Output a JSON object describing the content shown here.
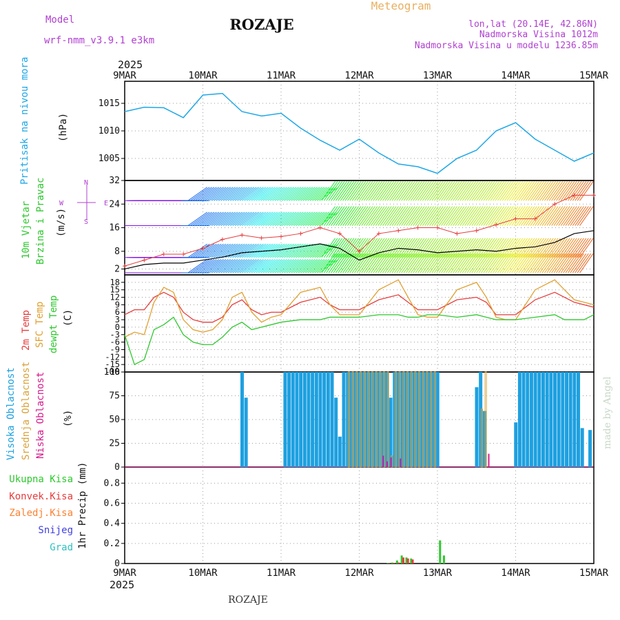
{
  "header": {
    "model_label": "Model",
    "model_name": "wrf-nmm_v3.9.1 e3km",
    "station": "ROZAJE",
    "product": "Meteogram",
    "coords": "lon,lat (20.14E, 42.86N)",
    "elevation": "Nadmorska Visina 1012m",
    "model_elevation": "Nadmorska Visina u modelu 1236.85m",
    "year": "2025"
  },
  "footer": {
    "station": "ROZAJE",
    "watermark": "made by Angel"
  },
  "colors": {
    "pressure": "#1ea7e6",
    "temp2m": "#e63c3c",
    "sfc": "#e0a030",
    "dew": "#2ec82e",
    "high": "#1ea0e0",
    "mid": "#d9a23a",
    "low": "#d81b8c",
    "total": "#2ec82e",
    "conv": "#e63c3c",
    "frozen": "#ff8030",
    "snow": "#4040e0",
    "hail": "#30c0c0",
    "wind": "#000000",
    "gust": "#e63c3c",
    "compass": "#b040d0"
  },
  "chart_data": [
    {
      "id": "pressure",
      "type": "line",
      "title": "Pritisak na nivou mora",
      "ylabel": "(hPa)",
      "xlabels": [
        "9MAR",
        "10MAR",
        "11MAR",
        "12MAR",
        "13MAR",
        "14MAR",
        "15MAR"
      ],
      "yticks": [
        1005,
        1010,
        1015
      ],
      "ylim": [
        1001,
        1019
      ],
      "x": [
        0,
        0.25,
        0.5,
        0.75,
        1.0,
        1.25,
        1.5,
        1.75,
        2.0,
        2.25,
        2.5,
        2.75,
        3.0,
        3.25,
        3.5,
        3.75,
        4.0,
        4.25,
        4.5,
        4.75,
        5.0,
        5.25,
        5.5,
        5.75,
        6.0
      ],
      "values": [
        1013.5,
        1014.3,
        1014.2,
        1012.4,
        1016.5,
        1016.8,
        1013.5,
        1012.7,
        1013.2,
        1010.5,
        1008.3,
        1006.5,
        1008.5,
        1006.0,
        1004.0,
        1003.5,
        1002.3,
        1005.0,
        1006.5,
        1010.0,
        1011.5,
        1008.5,
        1006.5,
        1004.5,
        1006.0
      ]
    },
    {
      "id": "wind",
      "type": "line",
      "title": "10m Vjetar Brzina i Pravac",
      "ylabel": "(m/s)",
      "compass": {
        "n": "N",
        "s": "S",
        "e": "E",
        "w": "W"
      },
      "yticks": [
        2,
        8,
        16,
        24,
        32
      ],
      "ylim": [
        0,
        32
      ],
      "x": [
        0,
        0.25,
        0.5,
        0.75,
        1.0,
        1.25,
        1.5,
        1.75,
        2.0,
        2.25,
        2.5,
        2.75,
        3.0,
        3.25,
        3.5,
        3.75,
        4.0,
        4.25,
        4.5,
        4.75,
        5.0,
        5.25,
        5.5,
        5.75,
        6.0
      ],
      "series": [
        {
          "name": "speed",
          "values": [
            2,
            3.5,
            4,
            4,
            5,
            6,
            7.5,
            8,
            8.5,
            9.5,
            10.5,
            9,
            5,
            7.5,
            9,
            8.5,
            7.5,
            8,
            8.5,
            8,
            9,
            9.5,
            11,
            14,
            15
          ]
        },
        {
          "name": "gust",
          "values": [
            3,
            5,
            7,
            7,
            9,
            12,
            13.5,
            12.5,
            13,
            14,
            16,
            14,
            8,
            14,
            15,
            16,
            16,
            14,
            15,
            17,
            19,
            19,
            24,
            27,
            27
          ]
        }
      ]
    },
    {
      "id": "temperature",
      "type": "line",
      "title": "2m Temp / SFC Temp / dewpt Temp",
      "ylabel": "(C)",
      "legend": [
        "2m Temp",
        "SFC Temp",
        "dewpt Temp"
      ],
      "yticks": [
        -18,
        -15,
        -12,
        -9,
        -6,
        -3,
        0,
        3,
        6,
        9,
        12,
        15,
        18
      ],
      "ylim": [
        -18,
        21
      ],
      "x": [
        0,
        0.125,
        0.25,
        0.375,
        0.5,
        0.625,
        0.75,
        0.875,
        1.0,
        1.125,
        1.25,
        1.375,
        1.5,
        1.625,
        1.75,
        1.875,
        2.0,
        2.25,
        2.5,
        2.625,
        2.75,
        2.875,
        3.0,
        3.25,
        3.5,
        3.625,
        3.75,
        3.875,
        4.0,
        4.25,
        4.5,
        4.625,
        4.75,
        4.875,
        5.0,
        5.25,
        5.5,
        5.625,
        5.75,
        5.875,
        6.0
      ],
      "series": [
        {
          "name": "2m Temp",
          "values": [
            5,
            7,
            7,
            12,
            14,
            12,
            6,
            3,
            2,
            2,
            4,
            9,
            11,
            7,
            5,
            6,
            6,
            10,
            12,
            9,
            7,
            7,
            7,
            11,
            13,
            10,
            7,
            7,
            7,
            11,
            12,
            10,
            5,
            5,
            5,
            11,
            14,
            12,
            10,
            9,
            8
          ]
        },
        {
          "name": "SFC Temp",
          "values": [
            -4,
            -2,
            -3,
            10,
            16,
            14,
            3,
            -1,
            -2,
            -1,
            3,
            12,
            14,
            6,
            2,
            4,
            5,
            14,
            16,
            9,
            5,
            5,
            5,
            15,
            19,
            12,
            5,
            4,
            4,
            15,
            18,
            12,
            4,
            3,
            3,
            15,
            19,
            15,
            11,
            10,
            9
          ]
        },
        {
          "name": "dewpt Temp",
          "values": [
            -3,
            -15,
            -13,
            -1,
            1,
            4,
            -3,
            -6,
            -7,
            -7,
            -4,
            0,
            2,
            -1,
            0,
            1,
            2,
            3,
            3,
            4,
            4,
            4,
            4,
            5,
            5,
            4,
            4,
            5,
            5,
            4,
            5,
            4,
            3,
            3,
            3,
            4,
            5,
            3,
            3,
            3,
            5
          ]
        }
      ]
    },
    {
      "id": "clouds",
      "type": "bar",
      "title": "Visoka / Srednja / Niska Oblacnost",
      "ylabel": "(%)",
      "legend": [
        "Visoka Oblacnost",
        "Srednja Oblacnost",
        "Niska Oblacnost"
      ],
      "yticks": [
        0,
        25,
        50,
        75,
        100
      ],
      "ylim": [
        0,
        100
      ],
      "series": [
        {
          "name": "Visoka Oblacnost",
          "x": [
            1.48,
            1.53,
            2.03,
            2.08,
            2.13,
            2.18,
            2.23,
            2.28,
            2.33,
            2.38,
            2.43,
            2.48,
            2.53,
            2.58,
            2.63,
            2.68,
            2.73,
            2.78,
            2.83,
            2.88,
            2.93,
            2.98,
            3.03,
            3.08,
            3.13,
            3.18,
            3.23,
            3.28,
            3.33,
            3.38,
            3.43,
            3.48,
            3.53,
            3.58,
            3.63,
            3.68,
            3.73,
            3.78,
            3.83,
            3.88,
            3.93,
            3.98,
            4.48,
            4.53,
            4.58,
            4.98,
            5.03,
            5.08,
            5.13,
            5.18,
            5.23,
            5.28,
            5.33,
            5.38,
            5.43,
            5.48,
            5.53,
            5.58,
            5.63,
            5.68,
            5.73,
            5.78,
            5.83,
            5.88,
            5.93
          ],
          "values": [
            100,
            73,
            100,
            100,
            100,
            100,
            100,
            100,
            100,
            100,
            100,
            100,
            100,
            100,
            100,
            73,
            32,
            100,
            100,
            100,
            100,
            100,
            100,
            100,
            100,
            100,
            100,
            100,
            100,
            73,
            100,
            100,
            100,
            100,
            100,
            100,
            100,
            100,
            100,
            100,
            100,
            100,
            84,
            100,
            59,
            47,
            100,
            100,
            100,
            100,
            100,
            100,
            100,
            100,
            100,
            100,
            100,
            100,
            100,
            100,
            100,
            100,
            41,
            0,
            39
          ]
        },
        {
          "name": "Srednja Oblacnost",
          "x": [
            2.85,
            2.9,
            2.95,
            3.0,
            3.05,
            3.1,
            3.15,
            3.2,
            3.25,
            3.3,
            3.35,
            3.4,
            3.45,
            3.5,
            3.55,
            3.6,
            3.65,
            3.7,
            3.75,
            3.8,
            3.85,
            3.9,
            3.95,
            4.55,
            4.6
          ],
          "values": [
            100,
            100,
            100,
            100,
            100,
            100,
            100,
            100,
            100,
            100,
            100,
            12,
            100,
            100,
            100,
            100,
            100,
            100,
            100,
            100,
            100,
            100,
            100,
            61,
            100
          ]
        },
        {
          "name": "Niska Oblacnost",
          "x": [
            3.28,
            3.33,
            3.38,
            3.5,
            4.63
          ],
          "values": [
            12,
            6,
            10,
            9,
            14
          ]
        }
      ]
    },
    {
      "id": "precip",
      "type": "bar",
      "title": "1hr Precip",
      "ylabel": "1hr Precip (mm)",
      "legend": [
        "Ukupna Kisa",
        "Konvek.Kisa",
        "Zaledj.Kisa",
        "Snijeg",
        "Grad"
      ],
      "yticks": [
        0,
        0.2,
        0.4,
        0.6,
        0.8
      ],
      "ylim": [
        0,
        0.96
      ],
      "series": [
        {
          "name": "Ukupna Kisa",
          "x": [
            3.35,
            3.41,
            3.47,
            3.53,
            3.59,
            3.65,
            4.02,
            4.07
          ],
          "values": [
            0.005,
            0.01,
            0.03,
            0.08,
            0.06,
            0.05,
            0.23,
            0.08
          ]
        },
        {
          "name": "Konvek.Kisa",
          "x": [
            3.37,
            3.43,
            3.49,
            3.55,
            3.61,
            3.67
          ],
          "values": [
            0.003,
            0.005,
            0.01,
            0.06,
            0.05,
            0.04
          ]
        }
      ]
    }
  ]
}
